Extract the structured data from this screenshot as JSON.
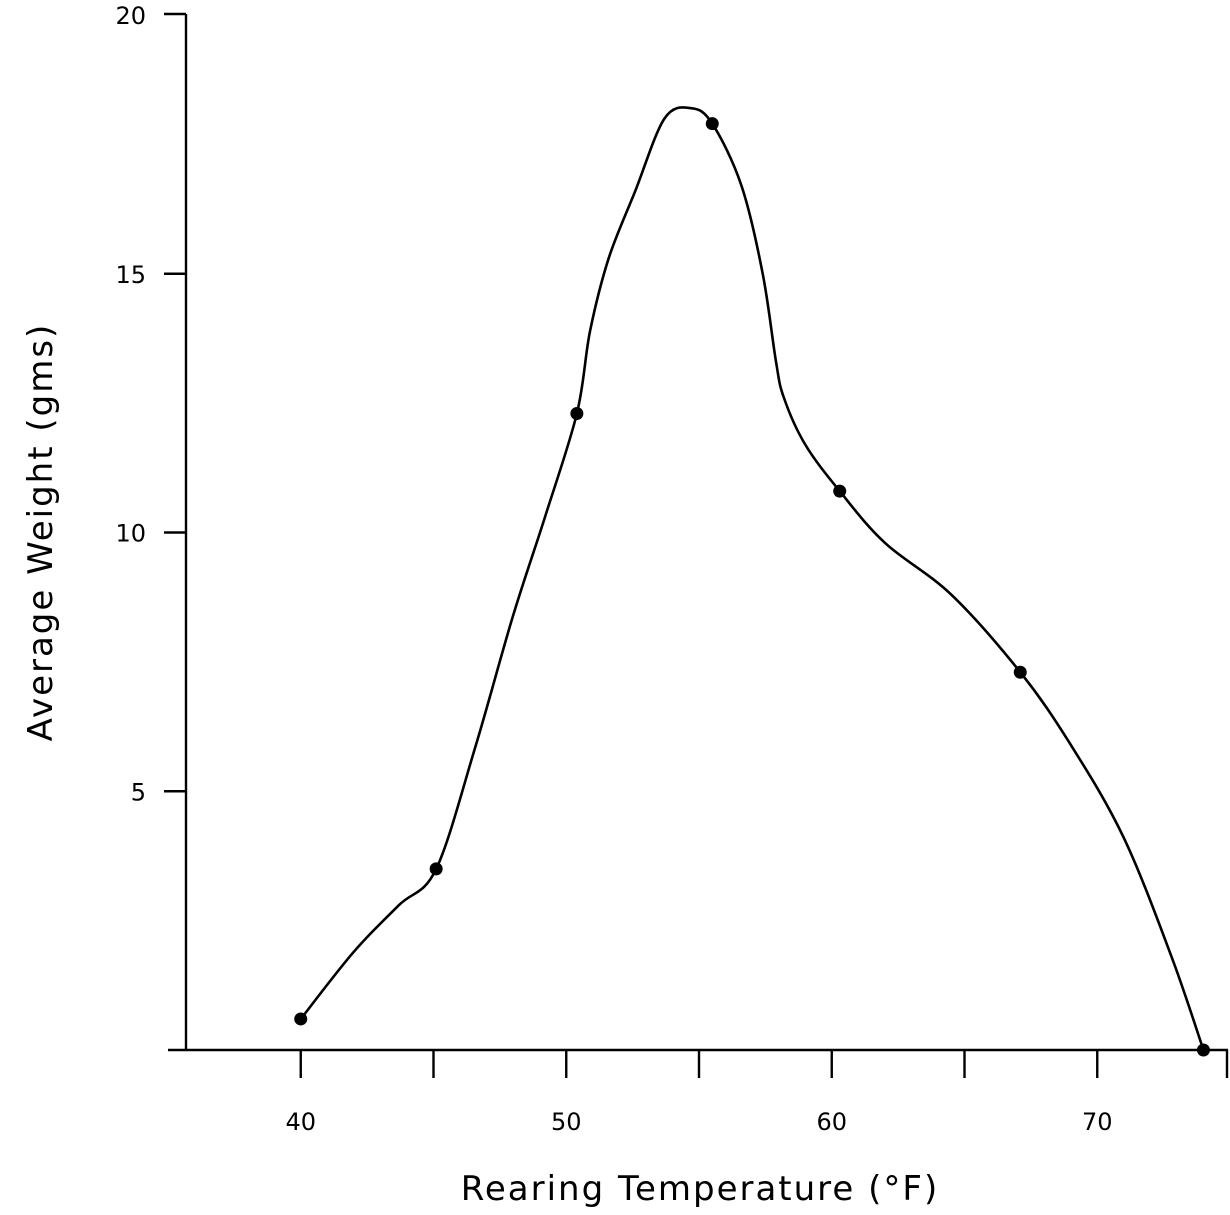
{
  "chart_data": {
    "type": "line",
    "xlabel": "Rearing Temperature (°F)",
    "ylabel": "Average Weight (gms)",
    "xlim": [
      35,
      75
    ],
    "ylim": [
      0,
      20
    ],
    "x_ticks": [
      35,
      40,
      45,
      50,
      55,
      60,
      65,
      70,
      75
    ],
    "x_tick_labels": [
      "40",
      "50",
      "60",
      "70"
    ],
    "x_tick_label_values": [
      40,
      50,
      60,
      70
    ],
    "y_ticks": [
      0,
      5,
      10,
      15,
      20
    ],
    "y_tick_labels": [
      "5",
      "10",
      "15",
      "20"
    ],
    "y_tick_label_values": [
      5,
      10,
      15,
      20
    ],
    "grid": false,
    "series": [
      {
        "x": [
          40.0,
          45.1,
          50.4,
          55.5,
          60.3,
          67.1,
          74.0
        ],
        "values": [
          0.6,
          3.5,
          12.3,
          17.9,
          10.8,
          7.3,
          0.0
        ]
      }
    ],
    "curve_x": [
      40.0,
      42.0,
      43.7,
      45.1,
      46.6,
      48.0,
      49.2,
      50.4,
      50.9,
      51.6,
      52.6,
      53.7,
      54.7,
      55.5,
      56.6,
      57.4,
      57.9,
      58.2,
      59.0,
      60.3,
      62.0,
      64.5,
      67.1,
      69.0,
      71.0,
      72.8,
      74.0
    ],
    "curve_y": [
      0.6,
      1.9,
      2.8,
      3.5,
      5.9,
      8.4,
      10.3,
      12.3,
      13.9,
      15.3,
      16.6,
      18.0,
      18.2,
      17.9,
      16.7,
      15.0,
      13.3,
      12.6,
      11.7,
      10.8,
      9.8,
      8.8,
      7.3,
      5.9,
      4.1,
      1.8,
      0.0
    ]
  }
}
